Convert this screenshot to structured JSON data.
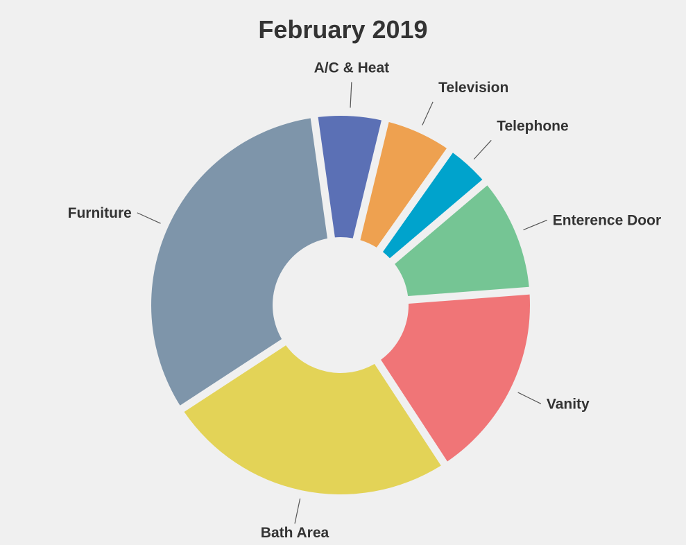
{
  "chart_data": {
    "type": "pie",
    "variant": "donut",
    "title": "February 2019",
    "slices": [
      {
        "label": "A/C & Heat",
        "value": 6,
        "color": "#5b70b5"
      },
      {
        "label": "Television",
        "value": 6,
        "color": "#eea150"
      },
      {
        "label": "Telephone",
        "value": 4,
        "color": "#00a3cc"
      },
      {
        "label": "Enterence Door",
        "value": 10,
        "color": "#75c594"
      },
      {
        "label": "Vanity",
        "value": 17,
        "color": "#f07577"
      },
      {
        "label": "Bath Area",
        "value": 25,
        "color": "#e3d357"
      },
      {
        "label": "Furniture",
        "value": 32,
        "color": "#7e95aa"
      }
    ],
    "legend": "none",
    "labels": "outside with leader lines",
    "background": "#f0f0f0"
  }
}
